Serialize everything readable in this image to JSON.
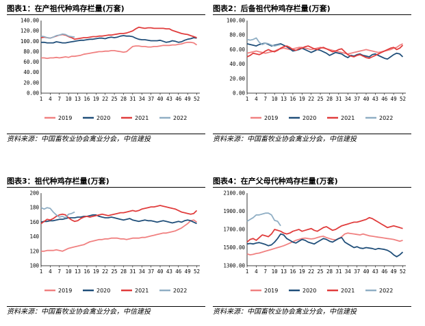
{
  "panels": [
    {
      "number": "图表1：",
      "title": "在产祖代种鸡存栏量(万套)",
      "source": "资料来源：中国畜牧业协会禽业分会，中信建投"
    },
    {
      "number": "图表2：",
      "title": "后备祖代种鸡存栏量(万套)",
      "source": "资料来源：中国畜牧业协会禽业分会，中信建投"
    },
    {
      "number": "图表3：",
      "title": "祖代种鸡存栏量(万套)",
      "source": "资料来源：中国畜牧业协会禽业分会，中信建投"
    },
    {
      "number": "图表4：",
      "title": "在产父母代种鸡存栏量(万套)",
      "source": "资料来源：中国畜牧业协会禽业分会，中信建投"
    }
  ],
  "chart_data": [
    {
      "type": "line",
      "title": "在产祖代种鸡存栏量(万套)",
      "xlabel": "",
      "ylabel": "",
      "x_ticks": [
        1,
        4,
        7,
        10,
        13,
        16,
        19,
        22,
        25,
        28,
        31,
        34,
        37,
        40,
        43,
        46,
        49,
        52
      ],
      "ylim": [
        0,
        140
      ],
      "y_ticks": [
        0,
        20,
        40,
        60,
        80,
        100,
        120,
        140
      ],
      "y_decimals": 2,
      "legend_position": "bottom",
      "series": [
        {
          "name": "2019",
          "color": "#f08080",
          "x_start": 1,
          "values": [
            68,
            68,
            67,
            68,
            68,
            69,
            68,
            69,
            70,
            69,
            71,
            71,
            72,
            73,
            75,
            76,
            77,
            78,
            79,
            80,
            80,
            81,
            81,
            82,
            82,
            81,
            80,
            79,
            80,
            85,
            90,
            91,
            91,
            90,
            90,
            89,
            89,
            90,
            90,
            91,
            92,
            92,
            92,
            93,
            93,
            94,
            95,
            97,
            98,
            98,
            97,
            93
          ]
        },
        {
          "name": "2020",
          "color": "#1f4e79",
          "x_start": 1,
          "values": [
            98,
            98,
            97,
            97,
            97,
            99,
            98,
            97,
            97,
            98,
            99,
            100,
            101,
            102,
            102,
            103,
            104,
            104,
            105,
            106,
            106,
            105,
            107,
            108,
            107,
            108,
            110,
            111,
            110,
            110,
            109,
            106,
            104,
            103,
            103,
            102,
            101,
            101,
            101,
            102,
            100,
            98,
            99,
            101,
            100,
            98,
            99,
            102,
            104,
            105,
            107,
            106
          ]
        },
        {
          "name": "2021",
          "color": "#e03c3c",
          "x_start": 1,
          "values": [
            107,
            108,
            107,
            106,
            108,
            110,
            112,
            113,
            112,
            109,
            107,
            104,
            105,
            106,
            107,
            107,
            108,
            109,
            109,
            110,
            110,
            111,
            112,
            112,
            113,
            114,
            115,
            115,
            116,
            118,
            120,
            124,
            127,
            126,
            125,
            126,
            126,
            125,
            125,
            125,
            125,
            124,
            124,
            121,
            119,
            117,
            115,
            114,
            113,
            111,
            109,
            107
          ]
        },
        {
          "name": "2022",
          "color": "#8faec4",
          "x_start": 1,
          "values": [
            110,
            109,
            107,
            106,
            108,
            111,
            112,
            114,
            113,
            110,
            109,
            108
          ]
        }
      ]
    },
    {
      "type": "line",
      "title": "后备祖代种鸡存栏量(万套)",
      "xlabel": "",
      "ylabel": "",
      "x_ticks": [
        1,
        4,
        7,
        10,
        13,
        16,
        19,
        22,
        25,
        28,
        31,
        34,
        37,
        40,
        43,
        46,
        49,
        52
      ],
      "ylim": [
        0,
        100
      ],
      "y_ticks": [
        0,
        20,
        40,
        60,
        80,
        100
      ],
      "y_decimals": 2,
      "legend_position": "bottom",
      "series": [
        {
          "name": "2019",
          "color": "#f08080",
          "x_start": 1,
          "values": [
            55,
            56,
            57,
            58,
            57,
            56,
            55,
            56,
            57,
            58,
            60,
            61,
            62,
            61,
            60,
            61,
            62,
            63,
            63,
            62,
            61,
            60,
            61,
            62,
            63,
            62,
            61,
            60,
            59,
            58,
            57,
            56,
            55,
            54,
            55,
            56,
            57,
            58,
            59,
            60,
            59,
            58,
            57,
            56,
            57,
            58,
            59,
            60,
            62,
            63,
            66,
            68
          ]
        },
        {
          "name": "2020",
          "color": "#1f4e79",
          "x_start": 1,
          "values": [
            68,
            67,
            66,
            65,
            67,
            68,
            69,
            67,
            65,
            66,
            67,
            68,
            66,
            64,
            61,
            58,
            59,
            60,
            62,
            60,
            58,
            56,
            58,
            60,
            59,
            57,
            55,
            52,
            54,
            56,
            55,
            54,
            51,
            49,
            52,
            51,
            53,
            54,
            52,
            51,
            50,
            53,
            54,
            52,
            50,
            48,
            47,
            50,
            53,
            55,
            54,
            50
          ]
        },
        {
          "name": "2021",
          "color": "#e03c3c",
          "x_start": 1,
          "values": [
            50,
            52,
            55,
            54,
            53,
            55,
            58,
            60,
            58,
            57,
            59,
            62,
            64,
            65,
            63,
            60,
            59,
            61,
            62,
            64,
            65,
            63,
            61,
            60,
            62,
            63,
            61,
            59,
            57,
            58,
            60,
            61,
            57,
            53,
            51,
            50,
            52,
            53,
            51,
            49,
            48,
            50,
            52,
            54,
            56,
            58,
            60,
            62,
            63,
            60,
            62,
            66
          ]
        },
        {
          "name": "2022",
          "color": "#8faec4",
          "x_start": 1,
          "values": [
            74,
            73,
            74,
            76,
            70,
            67,
            69,
            68,
            66,
            65,
            66,
            67
          ]
        }
      ]
    },
    {
      "type": "line",
      "title": "祖代种鸡存栏量(万套)",
      "xlabel": "",
      "ylabel": "",
      "x_ticks": [
        1,
        4,
        7,
        10,
        13,
        16,
        19,
        22,
        25,
        28,
        31,
        34,
        37,
        40,
        43,
        46,
        49,
        52
      ],
      "ylim": [
        100,
        200
      ],
      "y_ticks": [
        100,
        120,
        140,
        160,
        180,
        200
      ],
      "y_decimals": 0,
      "legend_position": "bottom",
      "series": [
        {
          "name": "2019",
          "color": "#f08080",
          "x_start": 1,
          "values": [
            120,
            120,
            121,
            121,
            121,
            122,
            121,
            120,
            122,
            124,
            125,
            126,
            127,
            128,
            129,
            131,
            133,
            134,
            135,
            136,
            136,
            137,
            137,
            138,
            138,
            138,
            137,
            137,
            136,
            137,
            138,
            138,
            138,
            139,
            139,
            140,
            141,
            142,
            143,
            144,
            145,
            145,
            146,
            147,
            148,
            150,
            152,
            155,
            158,
            162,
            163,
            160
          ]
        },
        {
          "name": "2020",
          "color": "#1f4e79",
          "x_start": 1,
          "values": [
            160,
            161,
            161,
            162,
            162,
            163,
            164,
            164,
            165,
            166,
            166,
            166,
            167,
            167,
            168,
            168,
            169,
            170,
            170,
            168,
            167,
            166,
            166,
            167,
            166,
            165,
            164,
            163,
            164,
            165,
            163,
            162,
            161,
            162,
            163,
            162,
            162,
            161,
            160,
            161,
            162,
            161,
            160,
            159,
            160,
            161,
            160,
            162,
            163,
            162,
            160,
            158
          ]
        },
        {
          "name": "2021",
          "color": "#e03c3c",
          "x_start": 1,
          "values": [
            158,
            161,
            164,
            163,
            165,
            168,
            170,
            171,
            170,
            166,
            163,
            161,
            162,
            165,
            167,
            168,
            167,
            168,
            169,
            170,
            171,
            170,
            169,
            170,
            171,
            172,
            173,
            173,
            174,
            175,
            176,
            175,
            176,
            178,
            179,
            180,
            181,
            181,
            182,
            183,
            182,
            181,
            180,
            179,
            178,
            176,
            174,
            173,
            172,
            171,
            172,
            176
          ]
        },
        {
          "name": "2022",
          "color": "#8faec4",
          "x_start": 1,
          "values": [
            180,
            178,
            180,
            179,
            174,
            170,
            167,
            168,
            166,
            171,
            172,
            174
          ]
        }
      ]
    },
    {
      "type": "line",
      "title": "在产父母代种鸡存栏量(万套)",
      "xlabel": "",
      "ylabel": "",
      "x_ticks": [
        1,
        4,
        7,
        10,
        13,
        16,
        19,
        22,
        25,
        28,
        31,
        34,
        37,
        40,
        43,
        46,
        49,
        52
      ],
      "ylim": [
        1300,
        2100
      ],
      "y_ticks": [
        1300,
        1500,
        1700,
        1900,
        2100
      ],
      "y_decimals": 2,
      "legend_position": "bottom",
      "series": [
        {
          "name": "2019",
          "color": "#f08080",
          "x_start": 1,
          "values": [
            1430,
            1420,
            1425,
            1435,
            1440,
            1450,
            1460,
            1470,
            1480,
            1490,
            1500,
            1510,
            1520,
            1535,
            1550,
            1565,
            1580,
            1590,
            1600,
            1605,
            1600,
            1595,
            1600,
            1610,
            1620,
            1625,
            1610,
            1600,
            1590,
            1585,
            1600,
            1620,
            1650,
            1660,
            1655,
            1650,
            1645,
            1640,
            1650,
            1640,
            1630,
            1625,
            1620,
            1615,
            1610,
            1605,
            1600,
            1595,
            1590,
            1580,
            1570,
            1580
          ]
        },
        {
          "name": "2020",
          "color": "#1f4e79",
          "x_start": 1,
          "values": [
            1540,
            1545,
            1540,
            1550,
            1555,
            1545,
            1535,
            1520,
            1530,
            1560,
            1600,
            1650,
            1640,
            1600,
            1580,
            1560,
            1550,
            1570,
            1590,
            1580,
            1560,
            1550,
            1540,
            1560,
            1580,
            1600,
            1590,
            1570,
            1560,
            1580,
            1600,
            1610,
            1560,
            1540,
            1520,
            1500,
            1510,
            1495,
            1490,
            1500,
            1495,
            1490,
            1480,
            1490,
            1485,
            1480,
            1470,
            1450,
            1420,
            1400,
            1420,
            1450
          ]
        },
        {
          "name": "2021",
          "color": "#e03c3c",
          "x_start": 1,
          "values": [
            1560,
            1590,
            1600,
            1580,
            1610,
            1640,
            1630,
            1620,
            1650,
            1700,
            1690,
            1680,
            1660,
            1650,
            1660,
            1680,
            1690,
            1700,
            1680,
            1690,
            1700,
            1710,
            1690,
            1680,
            1700,
            1720,
            1730,
            1710,
            1690,
            1700,
            1720,
            1740,
            1750,
            1760,
            1770,
            1780,
            1780,
            1790,
            1800,
            1810,
            1830,
            1820,
            1800,
            1780,
            1760,
            1740,
            1720,
            1730,
            1740,
            1730,
            1720,
            1710
          ]
        },
        {
          "name": "2022",
          "color": "#8faec4",
          "x_start": 1,
          "values": [
            1790,
            1810,
            1830,
            1860,
            1860,
            1870,
            1880,
            1880,
            1860,
            1800,
            1790,
            1740
          ]
        }
      ]
    }
  ]
}
